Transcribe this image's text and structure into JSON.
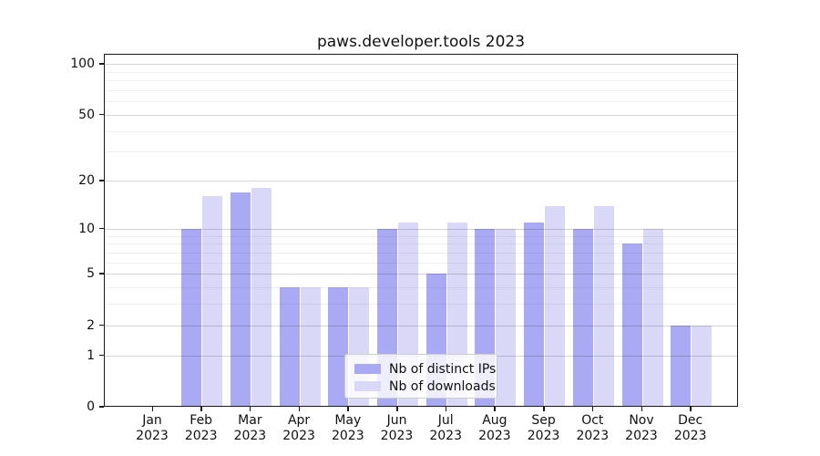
{
  "chart_data": {
    "type": "bar",
    "title": "paws.developer.tools 2023",
    "categories": [
      "Jan",
      "Feb",
      "Mar",
      "Apr",
      "May",
      "Jun",
      "Jul",
      "Aug",
      "Sep",
      "Oct",
      "Nov",
      "Dec"
    ],
    "category_year": "2023",
    "series": [
      {
        "name": "Nb of distinct IPs",
        "color": "#a9a9f4",
        "values": [
          0,
          10,
          17,
          4,
          4,
          10,
          5,
          10,
          11,
          10,
          8,
          2
        ]
      },
      {
        "name": "Nb of downloads",
        "color": "#d9d9f7",
        "values": [
          0,
          16,
          18,
          4,
          4,
          11,
          11,
          10,
          14,
          14,
          10,
          2
        ]
      }
    ],
    "xlabel": "",
    "ylabel": "",
    "yscale": "log1p",
    "ylim": [
      0,
      115
    ],
    "yticks_major": [
      0,
      1,
      2,
      5,
      10,
      20,
      50,
      100
    ],
    "yticks_minor": [
      3,
      4,
      6,
      7,
      8,
      9,
      30,
      40,
      60,
      70,
      80,
      90
    ],
    "grid": "on",
    "grid_over_bars": true,
    "legend": {
      "position": "lower center",
      "labels": [
        "Nb of distinct IPs",
        "Nb of downloads"
      ]
    }
  },
  "colors": {
    "background": "#ffffff",
    "axis": "#1a1a1a",
    "major_grid": "rgba(0,0,0,0.17)",
    "minor_grid": "rgba(0,0,0,0.06)",
    "legend_border": "#cccccc",
    "text": "#111111"
  }
}
